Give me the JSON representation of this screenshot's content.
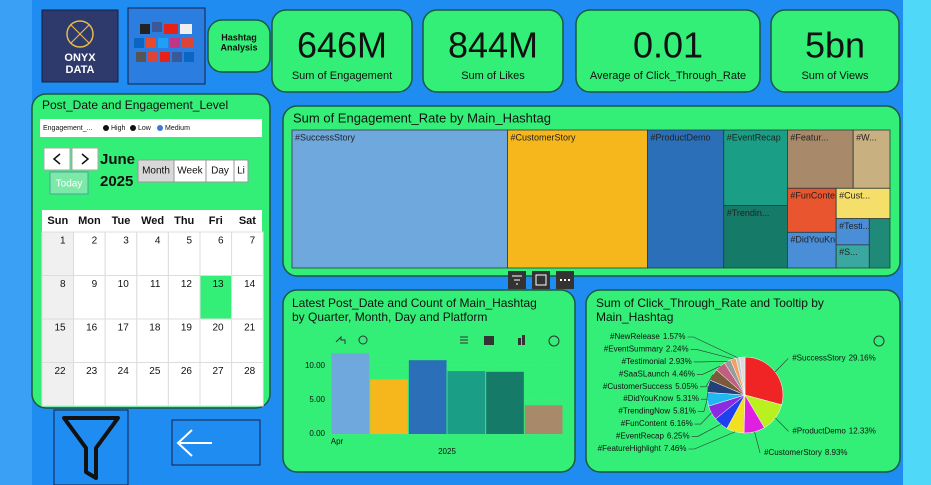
{
  "header": {
    "logo": [
      "ONYX",
      "DATA"
    ],
    "page_label": [
      "Hashtag",
      "Analysis"
    ]
  },
  "kpis": [
    {
      "value": "646M",
      "label": "Sum of Engagement"
    },
    {
      "value": "844M",
      "label": "Sum of Likes"
    },
    {
      "value": "0.01",
      "label": "Average of Click_Through_Rate"
    },
    {
      "value": "5bn",
      "label": "Sum of Views"
    }
  ],
  "calendar": {
    "title": "Post_Date and Engagement_Level",
    "legend_title": "Engagement_...",
    "legend": [
      "High",
      "Low",
      "Medium"
    ],
    "legend_colors": [
      "#111111",
      "#111111",
      "#3a7bd5"
    ],
    "month": "June",
    "year": "2025",
    "today": "Today",
    "views": [
      "Month",
      "Week",
      "Day",
      "Li"
    ],
    "weekdays": [
      "Sun",
      "Mon",
      "Tue",
      "Wed",
      "Thu",
      "Fri",
      "Sat"
    ],
    "weeks": [
      [
        1,
        2,
        3,
        4,
        5,
        6,
        7
      ],
      [
        8,
        9,
        10,
        11,
        12,
        13,
        14
      ],
      [
        15,
        16,
        17,
        18,
        19,
        20,
        21
      ],
      [
        22,
        23,
        24,
        25,
        26,
        27,
        28
      ]
    ],
    "highlight": 13
  },
  "treemap": {
    "type": "treemap",
    "title": "Sum of Engagement_Rate by Main_Hashtag",
    "categories": [
      "#SuccessStory",
      "#CustomerStory",
      "#ProductDemo",
      "#EventRecap",
      "#Trendin...",
      "#Featur...",
      "#W...",
      "#FunContent",
      "#DidYouKnow",
      "#Cust...",
      "#Testi...",
      "#S...",
      null
    ],
    "values": [
      29.1,
      18.9,
      10.3,
      4.7,
      3.9,
      3.75,
      2.1,
      2.1,
      1.7,
      1.6,
      0.85,
      0.75,
      1.0
    ],
    "colors": [
      "#6fa8dc",
      "#f5b71c",
      "#2a6fb8",
      "#1a9e86",
      "#157a68",
      "#a8896a",
      "#c8b080",
      "#e8552e",
      "#4a8ed8",
      "#f5de6a",
      "#4a8ed8",
      "#3aa8a0",
      "#1f8a78"
    ]
  },
  "bar_chart": {
    "type": "bar",
    "title": [
      "Latest Post_Date and Count of Main_Hashtag",
      "by Quarter, Month, Day and Platform"
    ],
    "values": [
      11.8,
      8.0,
      10.8,
      9.2,
      9.1,
      4.2
    ],
    "colors": [
      "#6fa8dc",
      "#f5b71c",
      "#2a6fb8",
      "#1a9e86",
      "#157a68",
      "#a8896a"
    ],
    "ylim": [
      0,
      12
    ],
    "yticks": [
      {
        "value": 0,
        "label": "0.00"
      },
      {
        "value": 5,
        "label": "5.00"
      },
      {
        "value": 10,
        "label": "10.00"
      }
    ],
    "x_labels": [
      "Apr",
      "2025"
    ],
    "grid": true
  },
  "pie_chart": {
    "type": "pie",
    "title": [
      "Sum of Click_Through_Rate and Tooltip by",
      "Main_Hashtag"
    ],
    "categories": [
      "#SuccessStory",
      "#ProductDemo",
      "#CustomerStory",
      "#FeatureHighlight",
      "#EventRecap",
      "#FunContent",
      "#TrendingNow",
      "#DidYouKnow",
      "#CustomerSuccess",
      "#SaaSLaunch",
      "#Testimonial",
      "#EventSummary",
      "#NewRelease",
      null
    ],
    "values": [
      29.16,
      12.33,
      8.93,
      7.46,
      6.25,
      6.16,
      5.81,
      5.31,
      5.05,
      4.46,
      2.93,
      2.24,
      1.57,
      2.34
    ],
    "value_labels": [
      "29.16%",
      "12.33%",
      "8.93%",
      "7.46%",
      "6.25%",
      "6.16%",
      "5.81%",
      "5.31%",
      "5.05%",
      "4.46%",
      "2.93%",
      "2.24%",
      "1.57%",
      null
    ],
    "colors": [
      "#f02424",
      "#b8f020",
      "#e020e0",
      "#f0e020",
      "#2040f0",
      "#8a2be2",
      "#20b8f0",
      "#23407a",
      "#7a5a3a",
      "#c06080",
      "#9a9a9a",
      "#f0a060",
      "#c8c8c8",
      "#dcdcdc"
    ]
  }
}
